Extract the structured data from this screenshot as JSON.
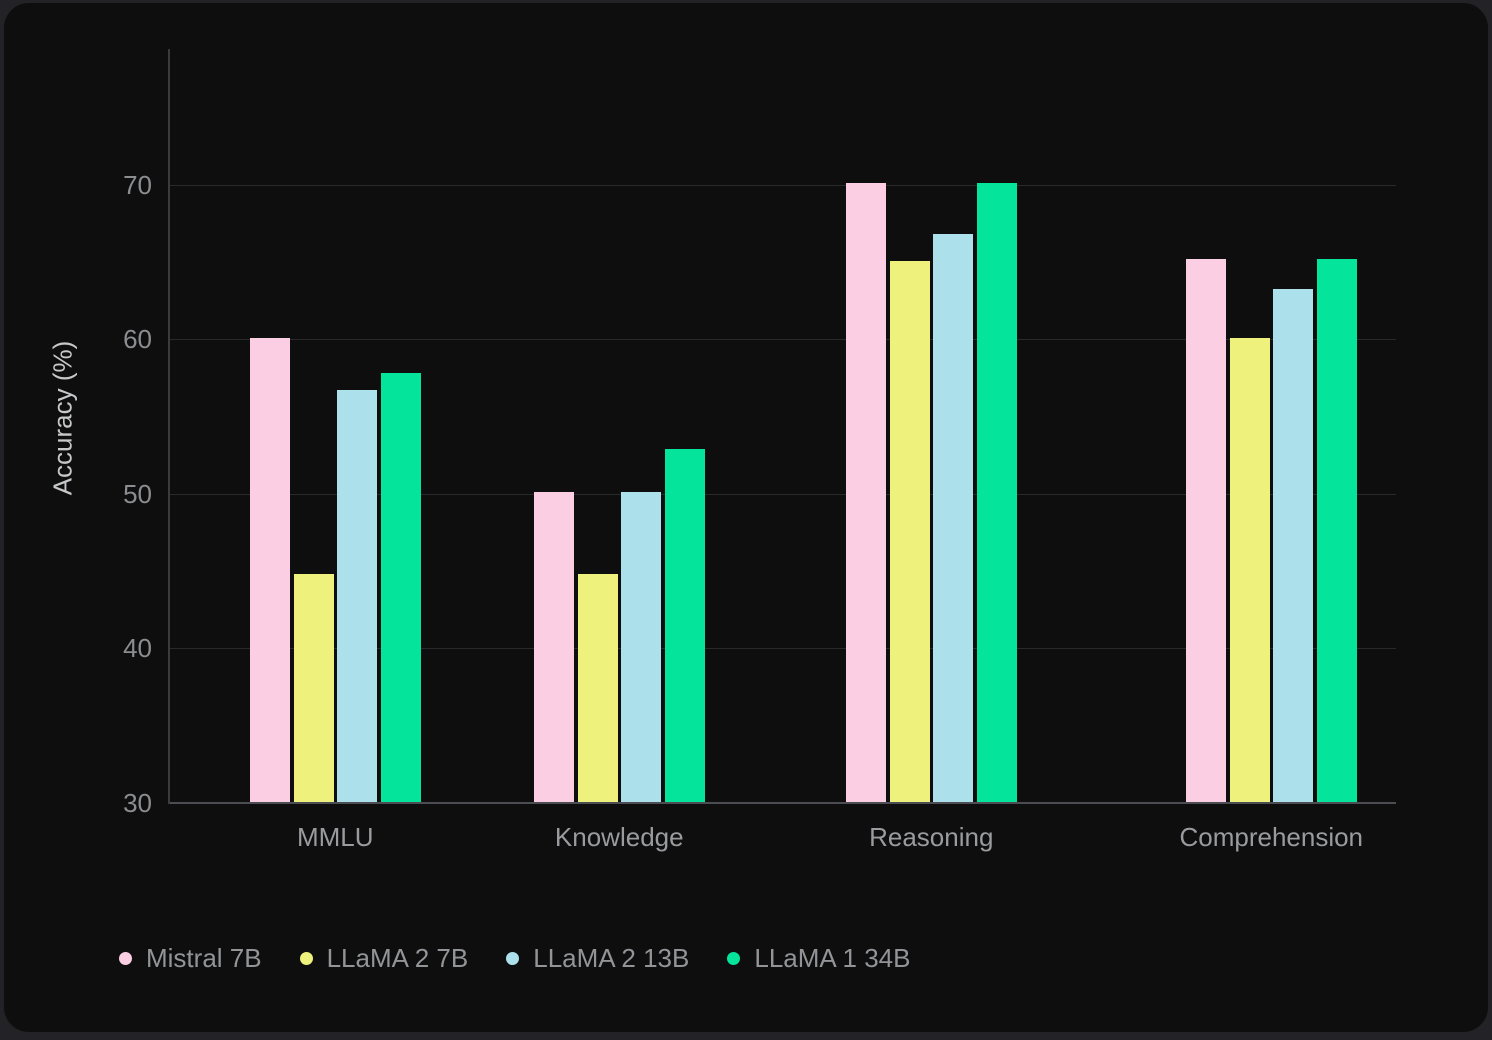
{
  "chart_data": {
    "type": "bar",
    "title": "",
    "xlabel": "",
    "ylabel": "Accuracy (%)",
    "ylim": [
      30,
      78.8
    ],
    "yticks": [
      30,
      40,
      50,
      60,
      70
    ],
    "grid": true,
    "legend_position": "bottom-left",
    "categories": [
      "MMLU",
      "Knowledge",
      "Reasoning",
      "Comprehension"
    ],
    "series": [
      {
        "name": "Mistral 7B",
        "color": "#fccee3",
        "values": [
          60.1,
          50.1,
          70.1,
          65.2
        ]
      },
      {
        "name": "LLaMA 2 7B",
        "color": "#eef17c",
        "values": [
          44.8,
          44.8,
          65.1,
          60.1
        ]
      },
      {
        "name": "LLaMA 2 13B",
        "color": "#ace0ea",
        "values": [
          56.7,
          50.1,
          66.8,
          63.3
        ]
      },
      {
        "name": "LLaMA 1 34B",
        "color": "#05e49b",
        "values": [
          57.8,
          52.9,
          70.1,
          65.2
        ]
      }
    ]
  }
}
